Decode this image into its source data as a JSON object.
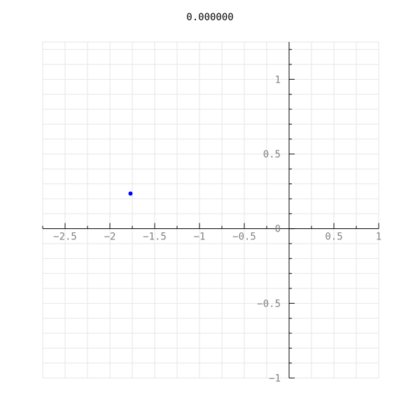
{
  "title": "0.000000",
  "chart_data": {
    "type": "scatter",
    "title": "0.000000",
    "xlabel": "",
    "ylabel": "",
    "xlim": [
      -2.75,
      1.0
    ],
    "ylim": [
      -1.0,
      1.25
    ],
    "x_ticks": [
      -2.5,
      -2,
      -1.5,
      -1,
      -0.5,
      0.5,
      1
    ],
    "x_tick_labels": [
      "−2.5",
      "−2",
      "−1.5",
      "−1",
      "−0.5",
      "0.5",
      "1"
    ],
    "y_ticks": [
      -1,
      -0.5,
      0,
      0.5,
      1
    ],
    "y_tick_labels": [
      "−1",
      "−0.5",
      "0",
      "0.5",
      "1"
    ],
    "grid": true,
    "legend": "none",
    "series": [
      {
        "points": [
          {
            "x": -1.77,
            "y": 0.235
          }
        ],
        "color": "#0000ff"
      }
    ],
    "colors": {
      "grid": "#e6e6e6",
      "axis": "#000000",
      "tick_label": "#808080",
      "point": "#0000ff"
    }
  }
}
